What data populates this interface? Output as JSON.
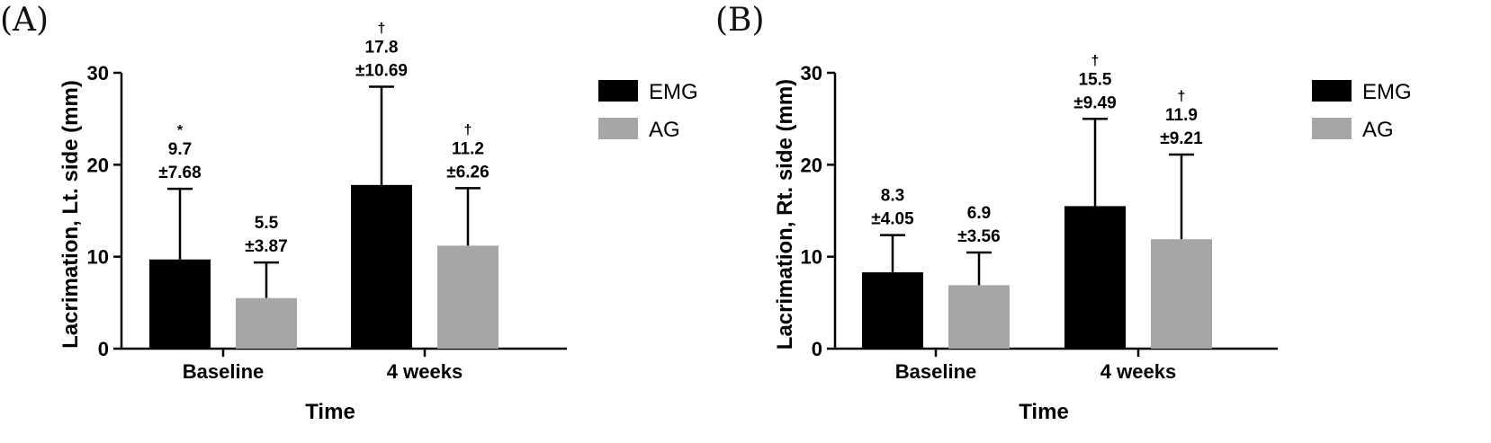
{
  "chart_data": [
    {
      "panel": "(A)",
      "type": "bar",
      "xlabel": "Time",
      "ylabel": "Lacrimation, Lt. side (mm)",
      "ylim": [
        0,
        30
      ],
      "yticks": [
        "0",
        "10",
        "20",
        "30"
      ],
      "categories": [
        "Baseline",
        "4 weeks"
      ],
      "legend": "right",
      "series": [
        {
          "name": "EMG",
          "color": "#000000",
          "values": [
            9.7,
            17.8
          ],
          "sd": [
            7.68,
            10.69
          ],
          "value_labels": [
            "9.7",
            "17.8"
          ],
          "sd_labels": [
            "±7.68",
            "±10.69"
          ],
          "marks": [
            "*",
            "†"
          ]
        },
        {
          "name": "AG",
          "color": "#a6a6a8",
          "values": [
            5.5,
            11.2
          ],
          "sd": [
            3.87,
            6.26
          ],
          "value_labels": [
            "5.5",
            "11.2"
          ],
          "sd_labels": [
            "±3.87",
            "±6.26"
          ],
          "marks": [
            "",
            "†"
          ]
        }
      ]
    },
    {
      "panel": "(B)",
      "type": "bar",
      "xlabel": "Time",
      "ylabel": "Lacrimation, Rt. side (mm)",
      "ylim": [
        0,
        30
      ],
      "yticks": [
        "0",
        "10",
        "20",
        "30"
      ],
      "categories": [
        "Baseline",
        "4 weeks"
      ],
      "legend": "right",
      "series": [
        {
          "name": "EMG",
          "color": "#000000",
          "values": [
            8.3,
            15.5
          ],
          "sd": [
            4.05,
            9.49
          ],
          "value_labels": [
            "8.3",
            "15.5"
          ],
          "sd_labels": [
            "±4.05",
            "±9.49"
          ],
          "marks": [
            "",
            "†"
          ]
        },
        {
          "name": "AG",
          "color": "#a6a6a8",
          "values": [
            6.9,
            11.9
          ],
          "sd": [
            3.56,
            9.21
          ],
          "value_labels": [
            "6.9",
            "11.9"
          ],
          "sd_labels": [
            "±3.56",
            "±9.21"
          ],
          "marks": [
            "",
            "†"
          ]
        }
      ]
    }
  ]
}
